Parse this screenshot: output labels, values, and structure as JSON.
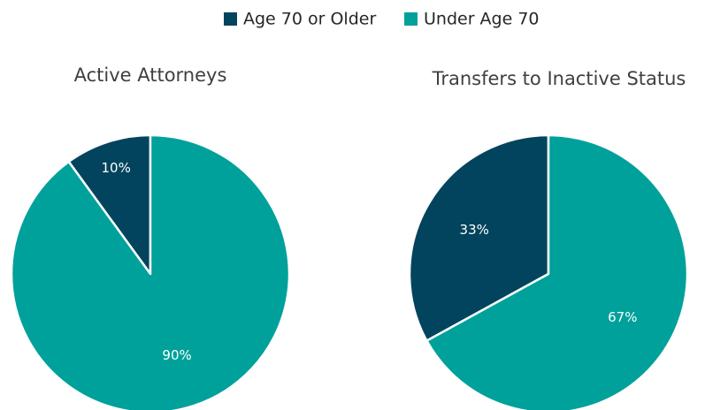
{
  "legend": {
    "names": [
      "Age 70 or Older",
      "Under Age 70"
    ],
    "colors": [
      "#02445e",
      "#00a19a"
    ]
  },
  "chart_data": [
    {
      "type": "pie",
      "title": "Active Attorneys",
      "values": [
        10,
        90
      ],
      "value_labels": [
        "10%",
        "90%"
      ]
    },
    {
      "type": "pie",
      "title": "Transfers to Inactive Status",
      "values": [
        33,
        67
      ],
      "value_labels": [
        "33%",
        "67%"
      ]
    }
  ]
}
